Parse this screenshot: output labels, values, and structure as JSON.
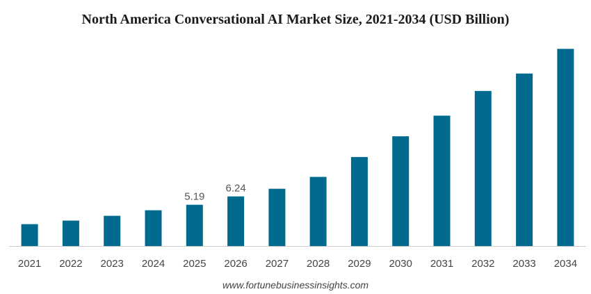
{
  "chart_data": {
    "type": "bar",
    "title": "North America Conversational AI Market Size, 2021-2034 (USD Billion)",
    "xlabel": "",
    "ylabel": "",
    "categories": [
      "2021",
      "2022",
      "2023",
      "2024",
      "2025",
      "2026",
      "2027",
      "2028",
      "2029",
      "2030",
      "2031",
      "2032",
      "2033",
      "2034"
    ],
    "values": [
      2.75,
      3.2,
      3.8,
      4.5,
      5.19,
      6.24,
      7.2,
      8.7,
      11.2,
      13.8,
      16.4,
      19.5,
      21.7,
      24.8
    ],
    "data_labels": [
      {
        "category": "2025",
        "text": "5.19"
      },
      {
        "category": "2026",
        "text": "6.24"
      }
    ],
    "ylim": [
      0,
      25
    ],
    "grid": false,
    "legend": "none",
    "bar_color": "#006a8e"
  },
  "source": "www.fortunebusinessinsights.com"
}
